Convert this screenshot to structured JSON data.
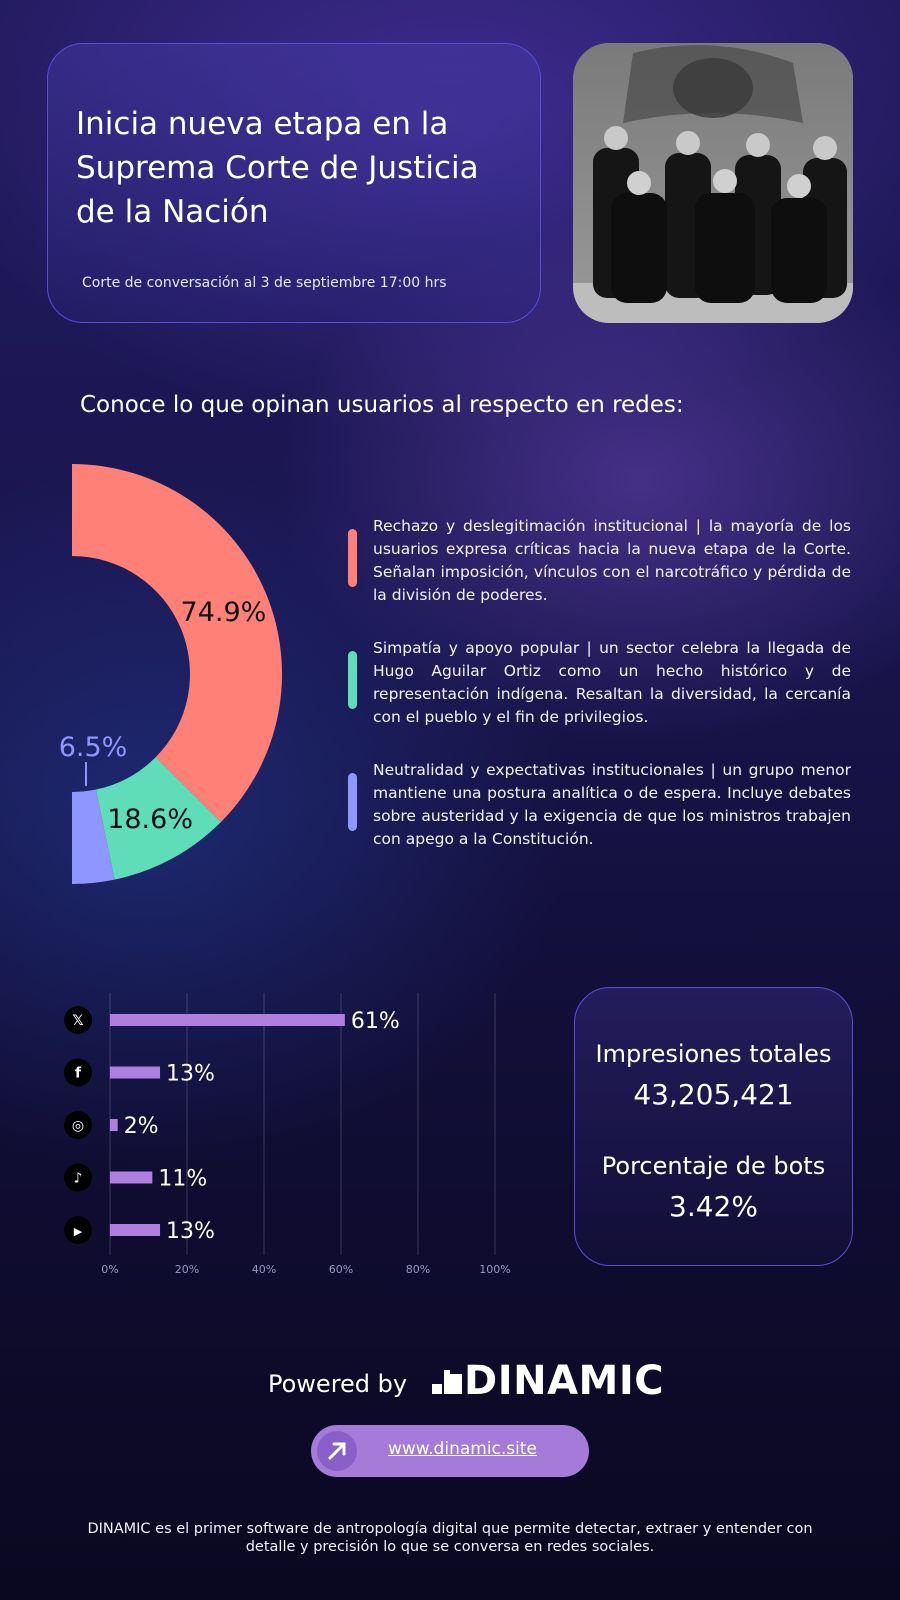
{
  "header": {
    "title": "Inicia nueva etapa en la Suprema Corte de Justicia de la Nación",
    "cut_note": "Corte de conversación al 3 de septiembre 17:00 hrs"
  },
  "subtitle": "Conoce lo que opinan usuarios al respecto en redes:",
  "chart_data": [
    {
      "type": "pie",
      "variant": "half-donut",
      "categories": [
        "Rechazo y deslegitimación institucional",
        "Simpatía y apoyo popular",
        "Neutralidad y expectativas institucionales"
      ],
      "values": [
        74.9,
        18.6,
        6.5
      ],
      "value_labels": [
        "74.9%",
        "18.6%",
        "6.5%"
      ],
      "colors": [
        "#ff8077",
        "#5fdcb8",
        "#8f96ff"
      ]
    },
    {
      "type": "bar",
      "orientation": "horizontal",
      "categories": [
        "X",
        "Facebook",
        "Instagram",
        "TikTok",
        "YouTube"
      ],
      "icons": [
        "x-icon",
        "facebook-icon",
        "instagram-icon",
        "tiktok-icon",
        "youtube-icon"
      ],
      "values": [
        61,
        13,
        2,
        11,
        13
      ],
      "value_labels": [
        "61%",
        "13%",
        "2%",
        "11%",
        "13%"
      ],
      "xlim": [
        0,
        100
      ],
      "xticks": [
        "0%",
        "20%",
        "40%",
        "60%",
        "80%",
        "100%"
      ],
      "grid": true,
      "color": "#b07de0"
    }
  ],
  "legend": [
    {
      "text": "Rechazo y deslegitimación institucional | la mayoría de los usuarios expresa críticas hacia la nueva etapa de la Corte. Señalan imposición, vínculos con el narcotráfico y pérdida de la división de poderes.",
      "color": "#ff8077"
    },
    {
      "text": "Simpatía y apoyo popular | un sector celebra la llegada de Hugo Aguilar Ortiz como un hecho histórico y de representación indígena. Resaltan la diversidad, la cercanía con el pueblo y el fin de privilegios.",
      "color": "#5fdcb8"
    },
    {
      "text": "Neutralidad y expectativas institucionales | un grupo menor mantiene una postura analítica o de espera. Incluye debates sobre austeridad y la exigencia de que los ministros trabajen con apego a la Constitución.",
      "color": "#8f96ff"
    }
  ],
  "stats": {
    "impressions_label": "Impresiones totales",
    "impressions_value": "43,205,421",
    "bots_label": "Porcentaje de bots",
    "bots_value": "3.42%"
  },
  "footer": {
    "powered_by": "Powered by",
    "brand": "DINAMIC",
    "url": "www.dinamic.site",
    "description": "DINAMIC es el primer software de antropología digital que permite detectar, extraer y entender con detalle y precisión lo que se conversa en redes sociales."
  }
}
